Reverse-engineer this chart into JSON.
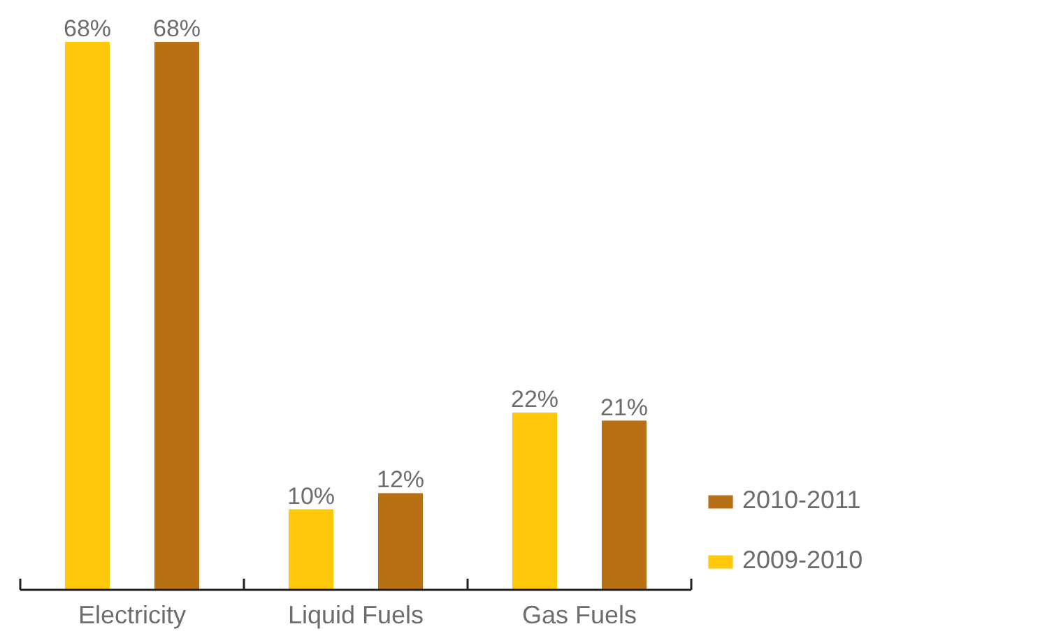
{
  "chart_data": {
    "type": "bar",
    "categories": [
      "Electricity",
      "Liquid Fuels",
      "Gas Fuels"
    ],
    "series": [
      {
        "name": "2009-2010",
        "color": "#ffc80a",
        "values": [
          68,
          10,
          22
        ],
        "value_labels": [
          "68%",
          "10%",
          "22%"
        ]
      },
      {
        "name": "2010-2011",
        "color": "#b87015",
        "values": [
          68,
          12,
          21
        ],
        "value_labels": [
          "68%",
          "12%",
          "21%"
        ]
      }
    ],
    "legend": "right",
    "grid": false
  }
}
